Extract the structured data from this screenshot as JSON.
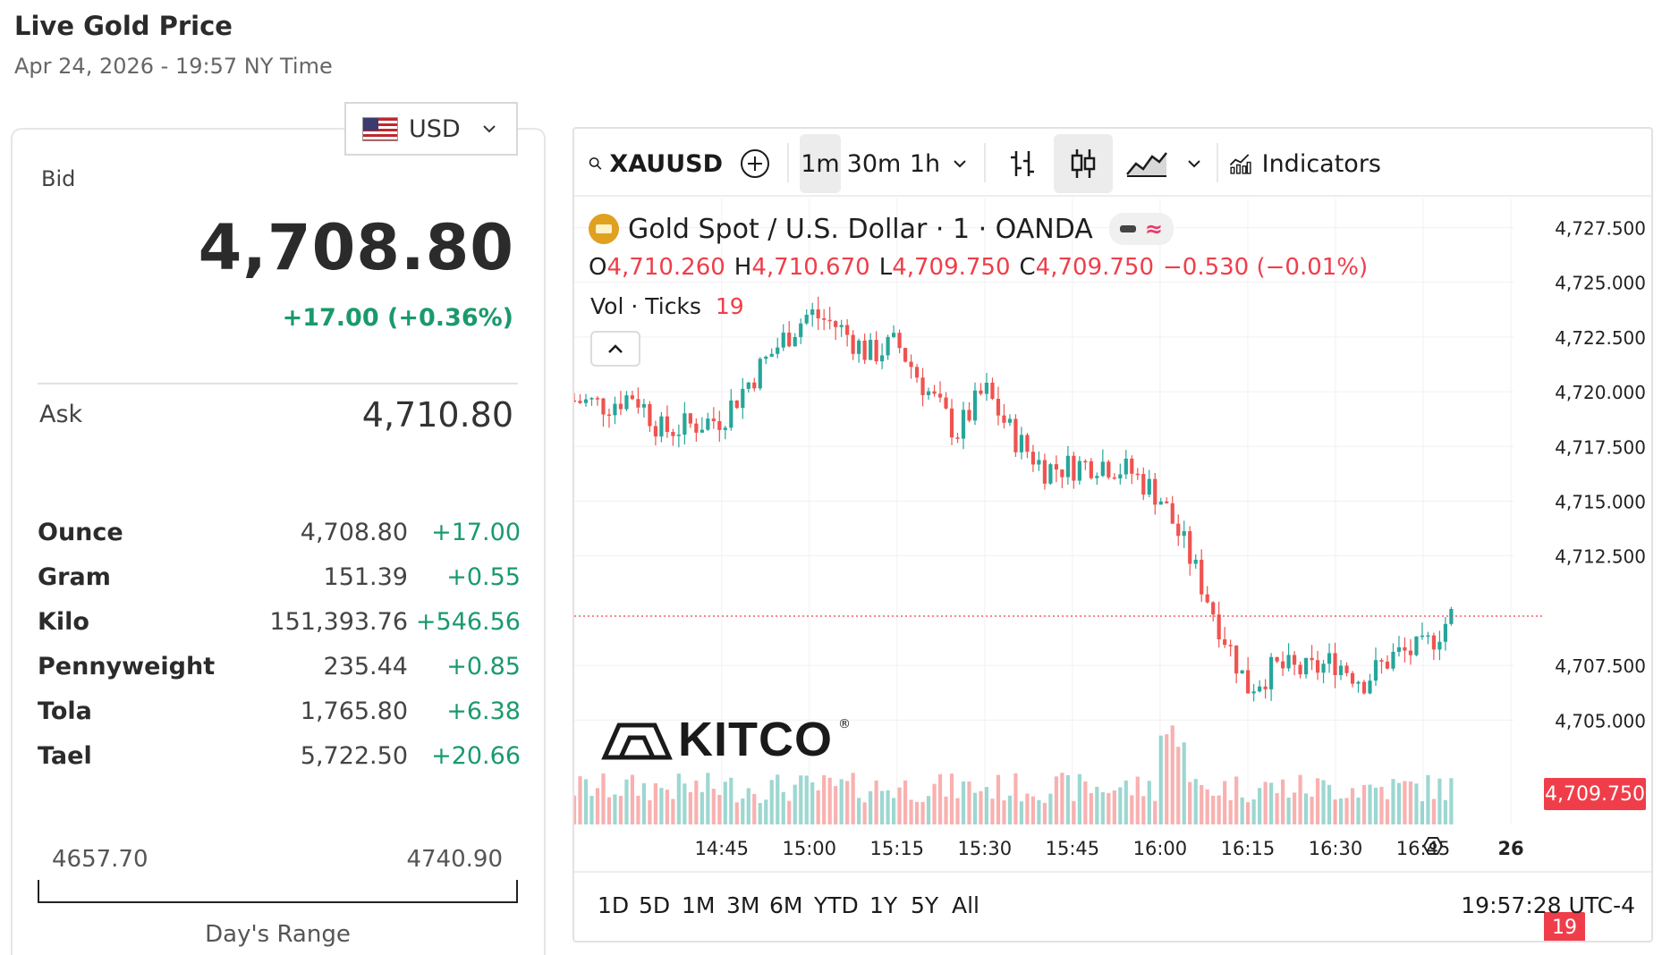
{
  "header": {
    "title": "Live Gold Price",
    "timestamp": "Apr 24, 2026 - 19:57 NY Time"
  },
  "currency": {
    "selected": "USD",
    "icon": "us-flag-icon"
  },
  "quote": {
    "bid_label": "Bid",
    "bid": "4,708.80",
    "bid_change": "+17.00 (+0.36%)",
    "ask_label": "Ask",
    "ask": "4,710.80"
  },
  "weights": [
    {
      "name": "Ounce",
      "price": "4,708.80",
      "change": "+17.00"
    },
    {
      "name": "Gram",
      "price": "151.39",
      "change": "+0.55"
    },
    {
      "name": "Kilo",
      "price": "151,393.76",
      "change": "+546.56"
    },
    {
      "name": "Pennyweight",
      "price": "235.44",
      "change": "+0.85"
    },
    {
      "name": "Tola",
      "price": "1,765.80",
      "change": "+6.38"
    },
    {
      "name": "Tael",
      "price": "5,722.50",
      "change": "+20.66"
    }
  ],
  "days_range": {
    "low": "4657.70",
    "high": "4740.90",
    "label": "Day's Range"
  },
  "toolbar": {
    "symbol": "XAUUSD",
    "intervals": [
      "1m",
      "30m",
      "1h"
    ],
    "active_interval": "1m",
    "indicators_label": "Indicators"
  },
  "legend": {
    "instrument": "Gold Spot / U.S. Dollar · 1 · OANDA",
    "o_label": "O",
    "o": "4,710.260",
    "h_label": "H",
    "h": "4,710.670",
    "l_label": "L",
    "l": "4,709.750",
    "c_label": "C",
    "c": "4,709.750",
    "change": "−0.530 (−0.01%)",
    "vol_label": "Vol · Ticks",
    "vol": "19"
  },
  "watermark": {
    "text": "KITCO",
    "reg": "®"
  },
  "last_price_tag": "4,709.750",
  "volume_tag": "19",
  "ranges": [
    "1D",
    "5D",
    "1M",
    "3M",
    "6M",
    "YTD",
    "1Y",
    "5Y",
    "All"
  ],
  "clock": "19:57:28 UTC-4",
  "colors": {
    "up": "#26a69a",
    "down": "#ef5350",
    "accent_green": "#1a9a6c"
  },
  "chart_data": {
    "type": "candlestick",
    "y_ticks": [
      "4,727.500",
      "4,725.000",
      "4,722.500",
      "4,720.000",
      "4,717.500",
      "4,715.000",
      "4,712.500",
      "4,707.500",
      "4,705.000"
    ],
    "ylim": [
      4703.5,
      4728.5
    ],
    "x_ticks": [
      "14:45",
      "15:00",
      "15:15",
      "15:30",
      "15:45",
      "16:00",
      "16:15",
      "16:30",
      "16:45",
      "26"
    ],
    "close_path": [
      [
        14.33,
        4719.6
      ],
      [
        14.42,
        4719.4
      ],
      [
        14.5,
        4719.9
      ],
      [
        14.58,
        4718.2
      ],
      [
        14.67,
        4718.5
      ],
      [
        14.75,
        4718.8
      ],
      [
        14.83,
        4720.5
      ],
      [
        14.92,
        4722.3
      ],
      [
        15.0,
        4723.6
      ],
      [
        15.08,
        4723.0
      ],
      [
        15.17,
        4721.7
      ],
      [
        15.25,
        4722.2
      ],
      [
        15.33,
        4720.2
      ],
      [
        15.42,
        4718.1
      ],
      [
        15.5,
        4720.1
      ],
      [
        15.58,
        4718.0
      ],
      [
        15.67,
        4716.5
      ],
      [
        15.75,
        4716.6
      ],
      [
        15.83,
        4716.8
      ],
      [
        15.92,
        4716.3
      ],
      [
        16.0,
        4715.2
      ],
      [
        16.08,
        4712.6
      ],
      [
        16.17,
        4709.3
      ],
      [
        16.25,
        4706.5
      ],
      [
        16.33,
        4707.4
      ],
      [
        16.42,
        4707.2
      ],
      [
        16.5,
        4707.7
      ],
      [
        16.58,
        4706.8
      ],
      [
        16.67,
        4708.0
      ],
      [
        16.75,
        4708.2
      ],
      [
        16.83,
        4709.75
      ]
    ]
  }
}
